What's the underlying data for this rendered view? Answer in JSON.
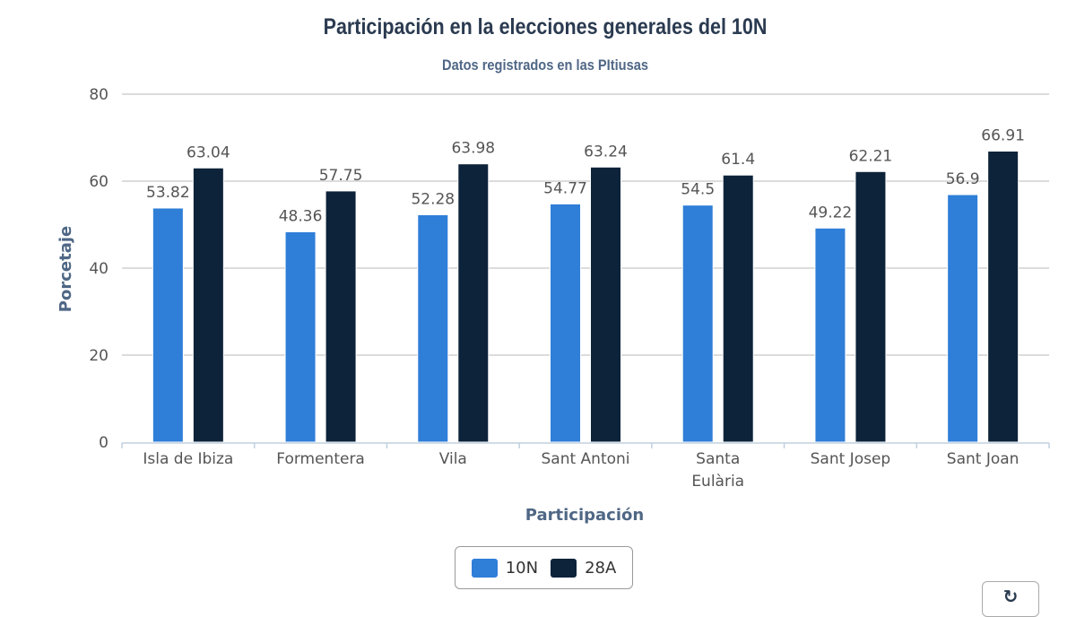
{
  "chart_data": {
    "type": "bar",
    "title": "Participación en la elecciones generales del 10N",
    "subtitle": "Datos registrados en las PItiusas",
    "xlabel": "Participación",
    "ylabel": "Porcetaje",
    "ylim": [
      0,
      80
    ],
    "yticks": [
      0,
      20,
      40,
      60,
      80
    ],
    "grid": true,
    "legend_position": "bottom-center",
    "categories": [
      "Isla de Ibiza",
      "Formentera",
      "Vila",
      "Sant Antoni",
      "Santa Eulària",
      "Sant Josep",
      "Sant Joan"
    ],
    "category_lines": [
      [
        "Isla de Ibiza"
      ],
      [
        "Formentera"
      ],
      [
        "Vila"
      ],
      [
        "Sant Antoni"
      ],
      [
        "Santa",
        "Eulària"
      ],
      [
        "Sant Josep"
      ],
      [
        "Sant Joan"
      ]
    ],
    "series": [
      {
        "name": "10N",
        "color": "#2f7ed8",
        "values": [
          53.82,
          48.36,
          52.28,
          54.77,
          54.5,
          49.22,
          56.9
        ]
      },
      {
        "name": "28A",
        "color": "#0d233a",
        "values": [
          63.04,
          57.75,
          63.98,
          63.24,
          61.4,
          62.21,
          66.91
        ]
      }
    ]
  },
  "legend": {
    "items": [
      {
        "label": "10N",
        "color": "#2f7ed8"
      },
      {
        "label": "28A",
        "color": "#0d233a"
      }
    ]
  },
  "controls": {
    "reset_icon": "↻"
  }
}
